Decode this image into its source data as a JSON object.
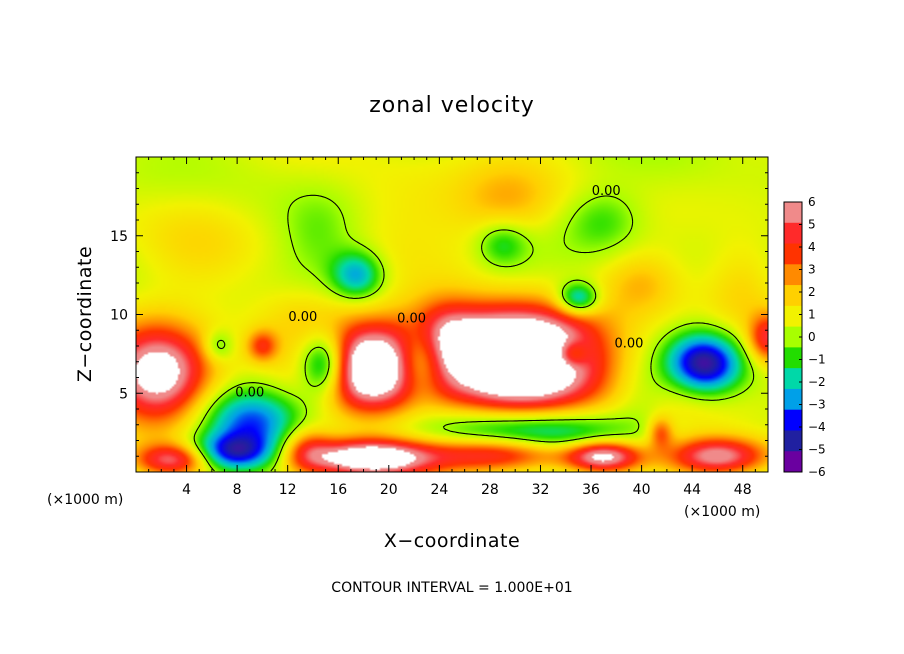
{
  "chart_data": {
    "type": "heatmap",
    "title": "zonal velocity",
    "xlabel": "X−coordinate",
    "ylabel": "Z−coordinate",
    "x_unit": "(×1000 m)",
    "y_unit": "(×1000 m)",
    "xlim": [
      0,
      50
    ],
    "ylim": [
      0,
      20
    ],
    "x_ticks": [
      4,
      8,
      12,
      16,
      20,
      24,
      28,
      32,
      36,
      40,
      44,
      48
    ],
    "x_tick_labels": [
      "4",
      "8",
      "12",
      "16",
      "20",
      "24",
      "28",
      "32",
      "36",
      "40",
      "44",
      "48"
    ],
    "y_ticks": [
      5,
      10,
      15
    ],
    "y_tick_labels": [
      "5",
      "10",
      "15"
    ],
    "colorbar": {
      "min": -6,
      "max": 6,
      "tick_values": [
        6,
        5,
        4,
        3,
        2,
        1,
        0,
        -1,
        -2,
        -3,
        -4,
        -5,
        -6
      ],
      "tick_labels": [
        "6",
        "5",
        "4",
        "3",
        "2",
        "1",
        "0",
        "−1",
        "−2",
        "−3",
        "−4",
        "−5",
        "−6"
      ],
      "colors": [
        "#f08a8a",
        "#ff2a2a",
        "#ff3300",
        "#ff8a00",
        "#ffd000",
        "#f2f200",
        "#a8ff00",
        "#22dd00",
        "#00d8a8",
        "#00a0e8",
        "#0000ff",
        "#2020a0",
        "#6a00a0"
      ]
    },
    "blobs": [
      {
        "x": 1.8,
        "z": 6.2,
        "rx": 4.0,
        "rz": 3.0,
        "v": 7.5
      },
      {
        "x": 18.5,
        "z": 6.6,
        "rx": 4.2,
        "rz": 2.8,
        "v": 8.5
      },
      {
        "x": 30.5,
        "z": 6.6,
        "rx": 6.8,
        "rz": 3.0,
        "v": 9.0
      },
      {
        "x": 29.5,
        "z": 9.0,
        "rx": 6.5,
        "rz": 2.0,
        "v": 3.5
      },
      {
        "x": 24.0,
        "z": 8.5,
        "rx": 3.0,
        "rz": 2.5,
        "v": 3.5
      },
      {
        "x": 15.0,
        "z": 6.8,
        "rx": 2.0,
        "rz": 2.0,
        "v": -6.0
      },
      {
        "x": 22.5,
        "z": 7.2,
        "rx": 2.0,
        "rz": 2.2,
        "v": -5.0
      },
      {
        "x": 45.0,
        "z": 6.8,
        "rx": 3.0,
        "rz": 2.0,
        "v": -6.5
      },
      {
        "x": 9.0,
        "z": 3.2,
        "rx": 4.0,
        "rz": 2.0,
        "v": -4.0
      },
      {
        "x": 7.5,
        "z": 1.2,
        "rx": 3.5,
        "rz": 1.2,
        "v": -5.0
      },
      {
        "x": 31.0,
        "z": 2.2,
        "rx": 8.0,
        "rz": 1.8,
        "v": -5.0
      },
      {
        "x": 29.0,
        "z": 1.2,
        "rx": 6.0,
        "rz": 1.2,
        "v": 7.0
      },
      {
        "x": 37.0,
        "z": 1.0,
        "rx": 3.0,
        "rz": 1.0,
        "v": 7.0
      },
      {
        "x": 18.5,
        "z": 0.9,
        "rx": 5.0,
        "rz": 1.2,
        "v": 8.0
      },
      {
        "x": 3.0,
        "z": 0.8,
        "rx": 3.0,
        "rz": 1.0,
        "v": 5.0
      },
      {
        "x": 46.0,
        "z": 1.0,
        "rx": 4.0,
        "rz": 1.2,
        "v": 6.0
      },
      {
        "x": 13.5,
        "z": 1.5,
        "rx": 2.0,
        "rz": 1.5,
        "v": 3.0
      },
      {
        "x": 17.5,
        "z": 12.5,
        "rx": 2.0,
        "rz": 1.5,
        "v": -3.5
      },
      {
        "x": 35.0,
        "z": 11.0,
        "rx": 1.6,
        "rz": 1.0,
        "v": -4.0
      },
      {
        "x": 29.5,
        "z": 17.0,
        "rx": 4.0,
        "rz": 2.5,
        "v": 1.8
      },
      {
        "x": 14.5,
        "z": 15.0,
        "rx": 3.0,
        "rz": 3.0,
        "v": -1.0
      },
      {
        "x": 29.0,
        "z": 14.5,
        "rx": 2.0,
        "rz": 1.5,
        "v": -2.0
      },
      {
        "x": 37.0,
        "z": 16.0,
        "rx": 3.0,
        "rz": 2.0,
        "v": -1.5
      },
      {
        "x": 48.0,
        "z": 12.0,
        "rx": 3.0,
        "rz": 3.0,
        "v": 1.5
      },
      {
        "x": 40.0,
        "z": 12.0,
        "rx": 3.0,
        "rz": 2.0,
        "v": 1.5
      },
      {
        "x": 10.0,
        "z": 8.0,
        "rx": 1.2,
        "rz": 1.0,
        "v": 3.0
      },
      {
        "x": 6.5,
        "z": 8.0,
        "rx": 1.2,
        "rz": 1.0,
        "v": -2.0
      },
      {
        "x": 34.5,
        "z": 7.5,
        "rx": 1.2,
        "rz": 0.8,
        "v": -3.0
      },
      {
        "x": 50.0,
        "z": 8.5,
        "rx": 1.5,
        "rz": 1.5,
        "v": 4.0
      },
      {
        "x": 41.5,
        "z": 2.5,
        "rx": 1.0,
        "rz": 1.0,
        "v": 3.0
      },
      {
        "x": 44.0,
        "z": 5.0,
        "rx": 4.0,
        "rz": 2.0,
        "v": 1.5
      },
      {
        "x": 13.0,
        "z": 10.0,
        "rx": 4.0,
        "rz": 2.0,
        "v": 1.2
      },
      {
        "x": 22.0,
        "z": 17.0,
        "rx": 6.0,
        "rz": 3.0,
        "v": 0.8
      },
      {
        "x": 5.0,
        "z": 14.0,
        "rx": 5.0,
        "rz": 4.0,
        "v": 0.7
      },
      {
        "x": 40.0,
        "z": 5.0,
        "rx": 2.5,
        "rz": 2.0,
        "v": -1.0
      }
    ],
    "contour_labels": [
      {
        "x": 37.2,
        "z": 17.6,
        "text": "0.00"
      },
      {
        "x": 13.2,
        "z": 9.6,
        "text": "0.00"
      },
      {
        "x": 21.8,
        "z": 9.5,
        "text": "0.00"
      },
      {
        "x": 39.0,
        "z": 7.9,
        "text": "0.00"
      },
      {
        "x": 9.0,
        "z": 4.8,
        "text": "0.00"
      }
    ]
  },
  "footer": {
    "contour_interval": "CONTOUR INTERVAL = 1.000E+01"
  }
}
